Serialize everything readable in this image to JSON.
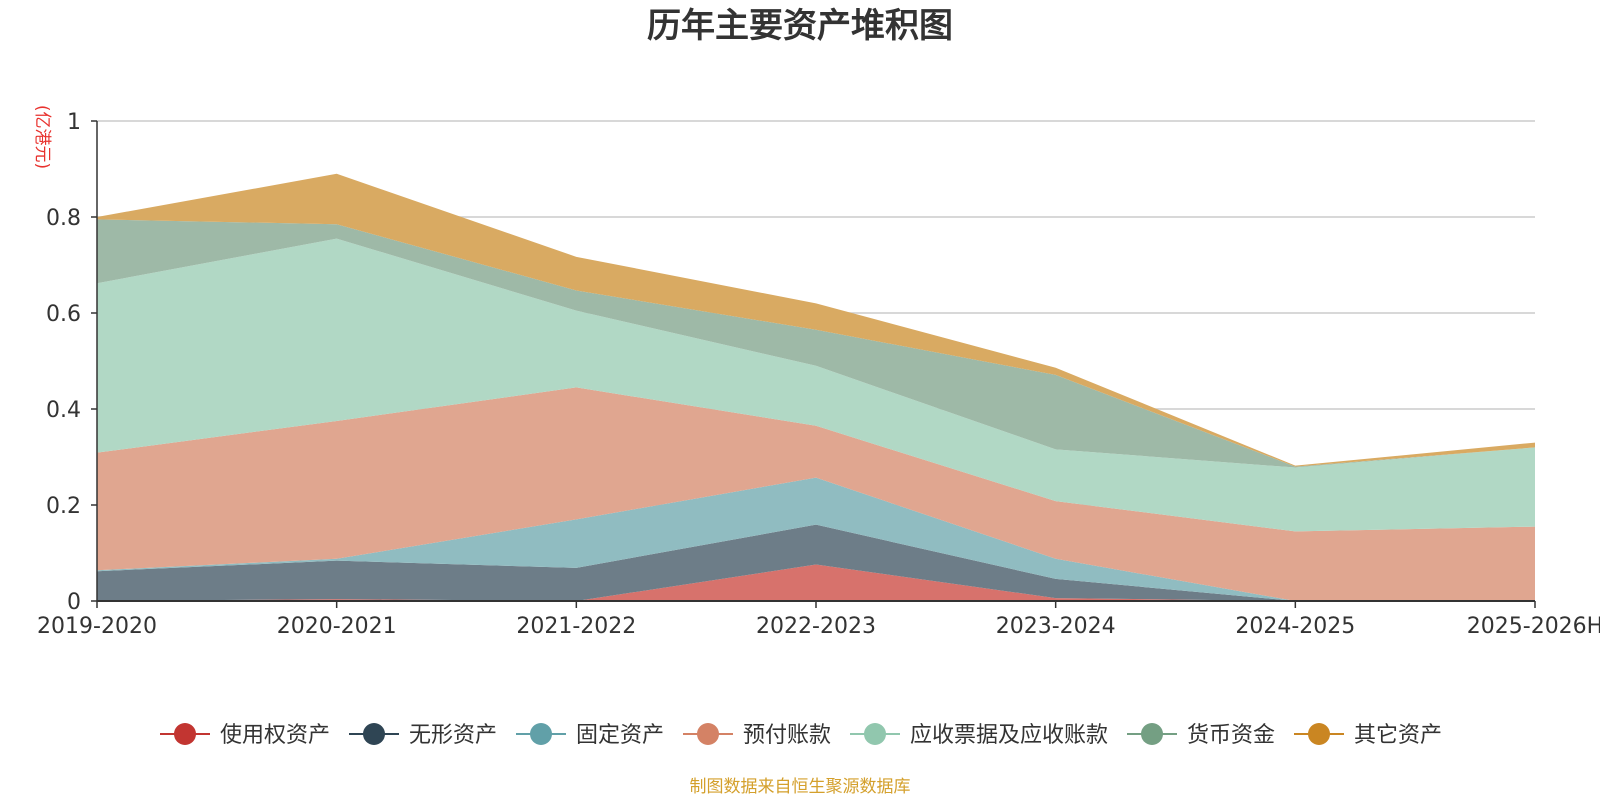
{
  "chart_data": {
    "type": "area",
    "stacked": true,
    "title": "历年主要资产堆积图",
    "ylabel": "(亿港元)",
    "xlabel": "",
    "categories": [
      "2019-2020",
      "2020-2021",
      "2021-2022",
      "2022-2023",
      "2023-2024",
      "2024-2025",
      "2025-2026H"
    ],
    "ylim": [
      0,
      1
    ],
    "yticks": [
      0,
      0.2,
      0.4,
      0.6,
      0.8,
      1
    ],
    "ytick_labels": [
      "0",
      "0.2",
      "0.4",
      "0.6",
      "0.8",
      "1"
    ],
    "grid": true,
    "legend_position": "bottom",
    "series": [
      {
        "name": "使用权资产",
        "color": "#c23531",
        "area_color": "#d7726c",
        "values": [
          0.0,
          0.004,
          0.0,
          0.076,
          0.006,
          0.0,
          0.0
        ]
      },
      {
        "name": "无形资产",
        "color": "#2f4554",
        "area_color": "#6d7d88",
        "values": [
          0.062,
          0.08,
          0.069,
          0.083,
          0.04,
          0.0,
          0.0
        ]
      },
      {
        "name": "固定资产",
        "color": "#61a0a8",
        "area_color": "#90bcc1",
        "values": [
          0.002,
          0.004,
          0.101,
          0.098,
          0.042,
          0.0,
          0.0
        ]
      },
      {
        "name": "预付账款",
        "color": "#d48265",
        "area_color": "#e0a690",
        "values": [
          0.245,
          0.287,
          0.275,
          0.108,
          0.12,
          0.145,
          0.155
        ]
      },
      {
        "name": "应收票据及应收账款",
        "color": "#91c7ae",
        "area_color": "#b1d8c5",
        "values": [
          0.353,
          0.38,
          0.16,
          0.125,
          0.108,
          0.133,
          0.165
        ]
      },
      {
        "name": "货币资金",
        "color": "#749f83",
        "area_color": "#9eb9a7",
        "values": [
          0.133,
          0.03,
          0.042,
          0.075,
          0.155,
          0.002,
          0.0
        ]
      },
      {
        "name": "其它资产",
        "color": "#ca8622",
        "area_color": "#d9aa62",
        "values": [
          0.005,
          0.105,
          0.07,
          0.055,
          0.015,
          0.002,
          0.01
        ]
      }
    ]
  },
  "footer": {
    "source": "制图数据来自恒生聚源数据库"
  }
}
